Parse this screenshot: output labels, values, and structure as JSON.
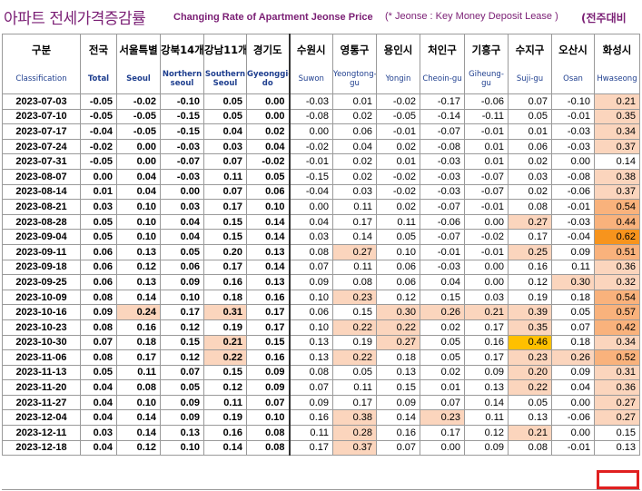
{
  "title": {
    "korean": "아파트 전세가격증감률",
    "english": "Changing Rate of Apartment Jeonse Price",
    "note": "(* Jeonse : Key Money Deposit Lease )",
    "comparison": "(전주대비"
  },
  "columns": [
    {
      "ko": "구분",
      "en": "Classification"
    },
    {
      "ko": "전국",
      "en": "Total"
    },
    {
      "ko": "서울특별",
      "en": "Seoul"
    },
    {
      "ko": "강북14개",
      "en": "Northern seoul"
    },
    {
      "ko": "강남11개",
      "en": "Southern Seoul"
    },
    {
      "ko": "경기도",
      "en": "Gyeonggi-do"
    },
    {
      "ko": "수원시",
      "en": "Suwon"
    },
    {
      "ko": "영통구",
      "en": "Yeongtong-gu"
    },
    {
      "ko": "용인시",
      "en": "Yongin"
    },
    {
      "ko": "처인구",
      "en": "Cheoin-gu"
    },
    {
      "ko": "기흥구",
      "en": "Giheung-gu"
    },
    {
      "ko": "수지구",
      "en": "Suji-gu"
    },
    {
      "ko": "오산시",
      "en": "Osan"
    },
    {
      "ko": "화성시",
      "en": "Hwaseong"
    }
  ],
  "rows": [
    {
      "date": "2023-07-03",
      "values": [
        "-0.05",
        "-0.02",
        "-0.10",
        "0.05",
        "0.00",
        "-0.03",
        "0.01",
        "-0.02",
        "-0.17",
        "-0.06",
        "0.07",
        "-0.10",
        "0.21"
      ],
      "shade": [
        0,
        0,
        0,
        0,
        0,
        0,
        0,
        0,
        0,
        0,
        0,
        0,
        1
      ]
    },
    {
      "date": "2023-07-10",
      "values": [
        "-0.05",
        "-0.05",
        "-0.15",
        "0.05",
        "0.00",
        "-0.08",
        "0.02",
        "-0.05",
        "-0.14",
        "-0.11",
        "0.05",
        "-0.01",
        "0.35"
      ],
      "shade": [
        0,
        0,
        0,
        0,
        0,
        0,
        0,
        0,
        0,
        0,
        0,
        0,
        1
      ]
    },
    {
      "date": "2023-07-17",
      "values": [
        "-0.04",
        "-0.05",
        "-0.15",
        "0.04",
        "0.02",
        "0.00",
        "0.06",
        "-0.01",
        "-0.07",
        "-0.01",
        "0.01",
        "-0.03",
        "0.34"
      ],
      "shade": [
        0,
        0,
        0,
        0,
        0,
        0,
        0,
        0,
        0,
        0,
        0,
        0,
        1
      ]
    },
    {
      "date": "2023-07-24",
      "values": [
        "-0.02",
        "0.00",
        "-0.03",
        "0.03",
        "0.04",
        "-0.02",
        "0.04",
        "0.02",
        "-0.08",
        "0.01",
        "0.06",
        "-0.03",
        "0.37"
      ],
      "shade": [
        0,
        0,
        0,
        0,
        0,
        0,
        0,
        0,
        0,
        0,
        0,
        0,
        1
      ]
    },
    {
      "date": "2023-07-31",
      "values": [
        "-0.05",
        "0.00",
        "-0.07",
        "0.07",
        "-0.02",
        "-0.01",
        "0.02",
        "0.01",
        "-0.03",
        "0.01",
        "0.02",
        "0.00",
        "0.14"
      ],
      "shade": [
        0,
        0,
        0,
        0,
        0,
        0,
        0,
        0,
        0,
        0,
        0,
        0,
        0
      ]
    },
    {
      "date": "2023-08-07",
      "values": [
        "0.00",
        "0.04",
        "-0.03",
        "0.11",
        "0.05",
        "-0.15",
        "0.02",
        "-0.02",
        "-0.03",
        "-0.07",
        "0.03",
        "-0.08",
        "0.38"
      ],
      "shade": [
        0,
        0,
        0,
        0,
        0,
        0,
        0,
        0,
        0,
        0,
        0,
        0,
        1
      ]
    },
    {
      "date": "2023-08-14",
      "values": [
        "0.01",
        "0.04",
        "0.00",
        "0.07",
        "0.06",
        "-0.04",
        "0.03",
        "-0.02",
        "-0.03",
        "-0.07",
        "0.02",
        "-0.06",
        "0.37"
      ],
      "shade": [
        0,
        0,
        0,
        0,
        0,
        0,
        0,
        0,
        0,
        0,
        0,
        0,
        1
      ]
    },
    {
      "date": "2023-08-21",
      "values": [
        "0.03",
        "0.10",
        "0.03",
        "0.17",
        "0.10",
        "0.00",
        "0.11",
        "0.02",
        "-0.07",
        "-0.01",
        "0.08",
        "-0.01",
        "0.54"
      ],
      "shade": [
        0,
        0,
        0,
        0,
        0,
        0,
        0,
        0,
        0,
        0,
        0,
        0,
        2
      ]
    },
    {
      "date": "2023-08-28",
      "values": [
        "0.05",
        "0.10",
        "0.04",
        "0.15",
        "0.14",
        "0.04",
        "0.17",
        "0.11",
        "-0.06",
        "0.00",
        "0.27",
        "-0.03",
        "0.44"
      ],
      "shade": [
        0,
        0,
        0,
        0,
        0,
        0,
        0,
        0,
        0,
        0,
        1,
        0,
        2
      ]
    },
    {
      "date": "2023-09-04",
      "values": [
        "0.05",
        "0.10",
        "0.04",
        "0.15",
        "0.14",
        "0.03",
        "0.14",
        "0.05",
        "-0.07",
        "-0.02",
        "0.17",
        "-0.04",
        "0.62"
      ],
      "shade": [
        0,
        0,
        0,
        0,
        0,
        0,
        0,
        0,
        0,
        0,
        0,
        0,
        3
      ]
    },
    {
      "date": "2023-09-11",
      "values": [
        "0.06",
        "0.13",
        "0.05",
        "0.20",
        "0.13",
        "0.08",
        "0.27",
        "0.10",
        "-0.01",
        "-0.01",
        "0.25",
        "0.09",
        "0.51"
      ],
      "shade": [
        0,
        0,
        0,
        0,
        0,
        0,
        1,
        0,
        0,
        0,
        1,
        0,
        2
      ]
    },
    {
      "date": "2023-09-18",
      "values": [
        "0.06",
        "0.12",
        "0.06",
        "0.17",
        "0.14",
        "0.07",
        "0.11",
        "0.06",
        "-0.03",
        "0.00",
        "0.16",
        "0.11",
        "0.36"
      ],
      "shade": [
        0,
        0,
        0,
        0,
        0,
        0,
        0,
        0,
        0,
        0,
        0,
        0,
        1
      ]
    },
    {
      "date": "2023-09-25",
      "values": [
        "0.06",
        "0.13",
        "0.09",
        "0.16",
        "0.13",
        "0.09",
        "0.08",
        "0.06",
        "0.04",
        "0.00",
        "0.12",
        "0.30",
        "0.32"
      ],
      "shade": [
        0,
        0,
        0,
        0,
        0,
        0,
        0,
        0,
        0,
        0,
        0,
        1,
        1
      ]
    },
    {
      "date": "2023-10-09",
      "values": [
        "0.08",
        "0.14",
        "0.10",
        "0.18",
        "0.16",
        "0.10",
        "0.23",
        "0.12",
        "0.15",
        "0.03",
        "0.19",
        "0.18",
        "0.54"
      ],
      "shade": [
        0,
        0,
        0,
        0,
        0,
        0,
        1,
        0,
        0,
        0,
        0,
        0,
        2
      ]
    },
    {
      "date": "2023-10-16",
      "values": [
        "0.09",
        "0.24",
        "0.17",
        "0.31",
        "0.17",
        "0.06",
        "0.15",
        "0.30",
        "0.26",
        "0.21",
        "0.39",
        "0.05",
        "0.57"
      ],
      "shade": [
        0,
        1,
        0,
        1,
        0,
        0,
        0,
        1,
        1,
        1,
        1,
        0,
        2
      ]
    },
    {
      "date": "2023-10-23",
      "values": [
        "0.08",
        "0.16",
        "0.12",
        "0.19",
        "0.17",
        "0.10",
        "0.22",
        "0.22",
        "0.02",
        "0.17",
        "0.35",
        "0.07",
        "0.42"
      ],
      "shade": [
        0,
        0,
        0,
        0,
        0,
        0,
        1,
        1,
        0,
        0,
        1,
        0,
        2
      ]
    },
    {
      "date": "2023-10-30",
      "values": [
        "0.07",
        "0.18",
        "0.15",
        "0.21",
        "0.15",
        "0.13",
        "0.19",
        "0.27",
        "0.05",
        "0.16",
        "0.46",
        "0.18",
        "0.34"
      ],
      "shade": [
        0,
        0,
        0,
        1,
        0,
        0,
        0,
        1,
        0,
        0,
        4,
        0,
        1
      ]
    },
    {
      "date": "2023-11-06",
      "values": [
        "0.08",
        "0.17",
        "0.12",
        "0.22",
        "0.16",
        "0.13",
        "0.22",
        "0.18",
        "0.05",
        "0.17",
        "0.23",
        "0.26",
        "0.52"
      ],
      "shade": [
        0,
        0,
        0,
        1,
        0,
        0,
        1,
        0,
        0,
        0,
        1,
        1,
        2
      ]
    },
    {
      "date": "2023-11-13",
      "values": [
        "0.05",
        "0.11",
        "0.07",
        "0.15",
        "0.09",
        "0.08",
        "0.05",
        "0.13",
        "0.02",
        "0.09",
        "0.20",
        "0.09",
        "0.31"
      ],
      "shade": [
        0,
        0,
        0,
        0,
        0,
        0,
        0,
        0,
        0,
        0,
        1,
        0,
        1
      ]
    },
    {
      "date": "2023-11-20",
      "values": [
        "0.04",
        "0.08",
        "0.05",
        "0.12",
        "0.09",
        "0.07",
        "0.11",
        "0.15",
        "0.01",
        "0.13",
        "0.22",
        "0.04",
        "0.36"
      ],
      "shade": [
        0,
        0,
        0,
        0,
        0,
        0,
        0,
        0,
        0,
        0,
        1,
        0,
        1
      ]
    },
    {
      "date": "2023-11-27",
      "values": [
        "0.04",
        "0.10",
        "0.09",
        "0.11",
        "0.07",
        "0.09",
        "0.17",
        "0.09",
        "0.07",
        "0.14",
        "0.05",
        "0.00",
        "0.27"
      ],
      "shade": [
        0,
        0,
        0,
        0,
        0,
        0,
        0,
        0,
        0,
        0,
        0,
        0,
        1
      ]
    },
    {
      "date": "2023-12-04",
      "values": [
        "0.04",
        "0.14",
        "0.09",
        "0.19",
        "0.10",
        "0.16",
        "0.38",
        "0.14",
        "0.23",
        "0.11",
        "0.13",
        "-0.06",
        "0.27"
      ],
      "shade": [
        0,
        0,
        0,
        0,
        0,
        0,
        1,
        0,
        1,
        0,
        0,
        0,
        1
      ]
    },
    {
      "date": "2023-12-11",
      "values": [
        "0.03",
        "0.14",
        "0.13",
        "0.16",
        "0.08",
        "0.11",
        "0.28",
        "0.16",
        "0.17",
        "0.12",
        "0.21",
        "0.00",
        "0.15"
      ],
      "shade": [
        0,
        0,
        0,
        0,
        0,
        0,
        1,
        0,
        0,
        0,
        1,
        0,
        0
      ]
    },
    {
      "date": "2023-12-18",
      "values": [
        "0.04",
        "0.12",
        "0.10",
        "0.14",
        "0.08",
        "0.17",
        "0.37",
        "0.07",
        "0.00",
        "0.09",
        "0.08",
        "-0.01",
        "0.13"
      ],
      "shade": [
        0,
        0,
        0,
        0,
        0,
        0,
        1,
        0,
        0,
        0,
        0,
        0,
        0
      ]
    }
  ],
  "colors": {
    "light_orange": "#fbd5bd",
    "mid_orange": "#f9b27c",
    "dark_orange": "#f7941d",
    "yellow": "#ffc000",
    "title_purple": "#7a1e74",
    "header_blue": "#1f3f8f",
    "highlight_red": "#e02020"
  }
}
